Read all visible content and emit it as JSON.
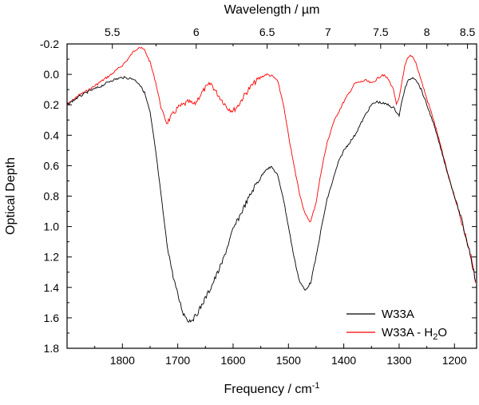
{
  "chart_data": {
    "type": "line",
    "title": "",
    "xlabel": "Frequency / cm",
    "xlabel_sup": "-1",
    "ylabel": "Optical Depth",
    "top_xlabel": "Wavelength / µm",
    "x_reversed": true,
    "y_reversed": true,
    "xlim": [
      1900,
      1160
    ],
    "ylim": [
      -0.2,
      1.8
    ],
    "x_ticks": [
      1800,
      1700,
      1600,
      1500,
      1400,
      1300,
      1200
    ],
    "y_ticks": [
      -0.2,
      0.0,
      0.2,
      0.4,
      0.6,
      0.8,
      1.0,
      1.2,
      1.4,
      1.6,
      1.8
    ],
    "y_tick_labels": [
      "-0.2",
      "0.0",
      "0.2",
      "0.4",
      "0.6",
      "0.8",
      "1.0",
      "1.2",
      "1.4",
      "1.6",
      "1.8"
    ],
    "top_ticks_um": [
      5.5,
      6,
      6.5,
      7,
      7.5,
      8,
      8.5
    ],
    "top_tick_labels": [
      "5.5",
      "6",
      "6.5",
      "7",
      "7.5",
      "8",
      "8.5"
    ],
    "legend_position": "bottom-right",
    "series": [
      {
        "name": "W33A",
        "color": "#000000",
        "x": [
          1900,
          1880,
          1860,
          1840,
          1820,
          1800,
          1780,
          1770,
          1760,
          1750,
          1740,
          1730,
          1720,
          1710,
          1700,
          1690,
          1680,
          1670,
          1660,
          1650,
          1640,
          1630,
          1620,
          1610,
          1600,
          1580,
          1560,
          1540,
          1530,
          1520,
          1510,
          1500,
          1490,
          1480,
          1470,
          1460,
          1450,
          1440,
          1430,
          1420,
          1410,
          1400,
          1390,
          1380,
          1370,
          1360,
          1350,
          1340,
          1330,
          1320,
          1310,
          1300,
          1295,
          1290,
          1285,
          1280,
          1275,
          1270,
          1260,
          1250,
          1240,
          1230,
          1220,
          1210,
          1200,
          1190,
          1180,
          1170,
          1165,
          1162
        ],
        "values": [
          0.2,
          0.15,
          0.11,
          0.08,
          0.04,
          0.02,
          0.03,
          0.06,
          0.12,
          0.25,
          0.5,
          0.8,
          1.1,
          1.3,
          1.45,
          1.57,
          1.62,
          1.6,
          1.54,
          1.47,
          1.4,
          1.32,
          1.24,
          1.13,
          1.02,
          0.87,
          0.73,
          0.62,
          0.61,
          0.66,
          0.8,
          1.0,
          1.2,
          1.36,
          1.42,
          1.37,
          1.2,
          1.0,
          0.82,
          0.7,
          0.58,
          0.5,
          0.45,
          0.4,
          0.33,
          0.26,
          0.2,
          0.18,
          0.19,
          0.2,
          0.22,
          0.27,
          0.18,
          0.1,
          0.05,
          0.03,
          0.02,
          0.03,
          0.1,
          0.2,
          0.3,
          0.42,
          0.55,
          0.68,
          0.8,
          0.92,
          1.06,
          1.2,
          1.3,
          1.36
        ]
      },
      {
        "name": "W33A - H2O",
        "color": "#ff0000",
        "x": [
          1900,
          1880,
          1860,
          1840,
          1820,
          1800,
          1790,
          1780,
          1770,
          1760,
          1750,
          1740,
          1730,
          1720,
          1710,
          1700,
          1690,
          1680,
          1670,
          1660,
          1650,
          1640,
          1630,
          1620,
          1610,
          1600,
          1590,
          1580,
          1570,
          1560,
          1550,
          1540,
          1530,
          1520,
          1510,
          1500,
          1490,
          1480,
          1470,
          1460,
          1450,
          1440,
          1430,
          1420,
          1410,
          1400,
          1390,
          1380,
          1370,
          1360,
          1350,
          1340,
          1330,
          1320,
          1310,
          1305,
          1300,
          1295,
          1290,
          1285,
          1280,
          1275,
          1270,
          1260,
          1250,
          1240,
          1230,
          1220,
          1210,
          1200,
          1190,
          1180,
          1170,
          1165,
          1162
        ],
        "values": [
          0.2,
          0.14,
          0.1,
          0.05,
          0.0,
          -0.06,
          -0.1,
          -0.15,
          -0.18,
          -0.16,
          -0.08,
          0.05,
          0.22,
          0.32,
          0.27,
          0.22,
          0.2,
          0.18,
          0.2,
          0.14,
          0.09,
          0.06,
          0.12,
          0.17,
          0.22,
          0.24,
          0.2,
          0.14,
          0.09,
          0.05,
          0.02,
          0.0,
          0.01,
          0.04,
          0.18,
          0.4,
          0.6,
          0.78,
          0.92,
          0.97,
          0.84,
          0.62,
          0.45,
          0.33,
          0.25,
          0.18,
          0.12,
          0.06,
          0.05,
          0.04,
          0.06,
          0.03,
          0.0,
          0.03,
          0.1,
          0.2,
          0.16,
          0.05,
          -0.05,
          -0.1,
          -0.12,
          -0.11,
          -0.08,
          0.04,
          0.16,
          0.27,
          0.4,
          0.54,
          0.68,
          0.8,
          0.93,
          1.06,
          1.2,
          1.3,
          1.37
        ]
      }
    ],
    "legend": [
      {
        "label_main": "W33A",
        "label_sub": "",
        "label_tail": "",
        "color": "#000000"
      },
      {
        "label_main": "W33A - H",
        "label_sub": "2",
        "label_tail": "O",
        "color": "#ff0000"
      }
    ]
  }
}
